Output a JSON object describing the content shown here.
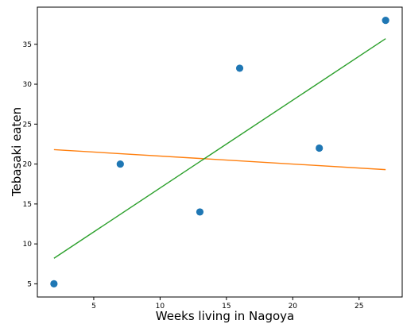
{
  "chart_data": {
    "type": "scatter",
    "title": "",
    "xlabel": "Weeks living in Nagoya",
    "ylabel": "Tebasaki eaten",
    "xlim": [
      0.75,
      28.25
    ],
    "ylim": [
      3.35,
      39.65
    ],
    "xticks": [
      5,
      10,
      15,
      20,
      25
    ],
    "yticks": [
      5,
      10,
      15,
      20,
      25,
      30,
      35
    ],
    "grid": false,
    "points": {
      "x": [
        2,
        7,
        13,
        16,
        22,
        27
      ],
      "y": [
        5,
        20,
        14,
        32,
        22,
        38
      ],
      "color": "#1f77b4"
    },
    "lines": [
      {
        "x": [
          2,
          27
        ],
        "y": [
          21.8,
          19.3
        ],
        "color": "#ff7f0e"
      },
      {
        "x": [
          2,
          27
        ],
        "y": [
          8.2,
          35.7
        ],
        "color": "#2ca02c"
      }
    ]
  }
}
